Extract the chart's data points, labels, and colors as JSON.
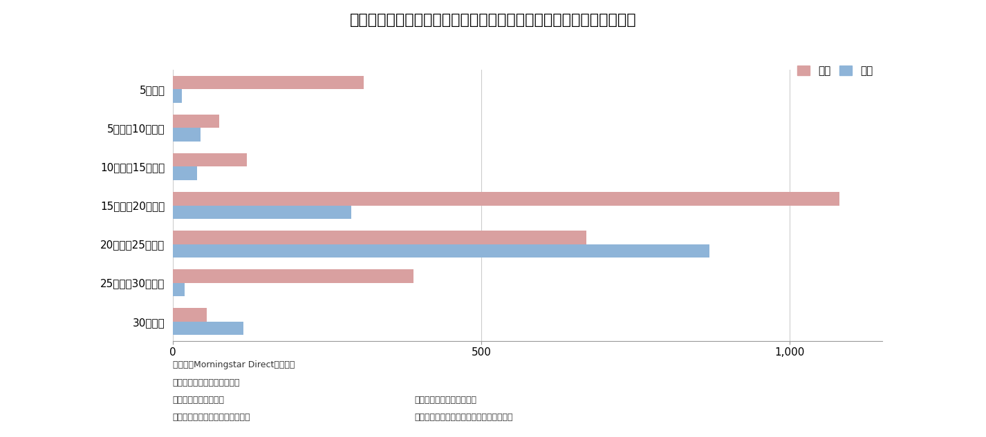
{
  "title": "図表１：過去データの入手可能期間別グローバル・インデックスの数",
  "categories": [
    "5年未満",
    "5年以上10年未満",
    "10年以上15年未満",
    "15年以上20年未満",
    "20年以上25年未満",
    "25年以上30年未満",
    "30年以上"
  ],
  "equity_values": [
    310,
    75,
    120,
    1080,
    670,
    390,
    55
  ],
  "bond_values": [
    15,
    45,
    40,
    290,
    870,
    20,
    115
  ],
  "equity_color": "#D9A0A0",
  "bond_color": "#8EB4D8",
  "xlim": [
    0,
    1150
  ],
  "xticks": [
    0,
    500,
    1000
  ],
  "xtick_labels": [
    "0",
    "500",
    "1,000"
  ],
  "legend_equity": "株式",
  "legend_bond": "債券",
  "footer_line1": "（資料）Morningstar Directより作成",
  "footer_line2": "【インデックスの抽出条件】",
  "footer_line3_left": "ベース通貨　：米ドル",
  "footer_line3_right": "地域　　　　：グローバル",
  "footer_line4_left": "資産クラス　：株式　又は　債券",
  "footer_line4_right": "リターン・タイプ　：トータル・リターン",
  "background_color": "#FFFFFF"
}
